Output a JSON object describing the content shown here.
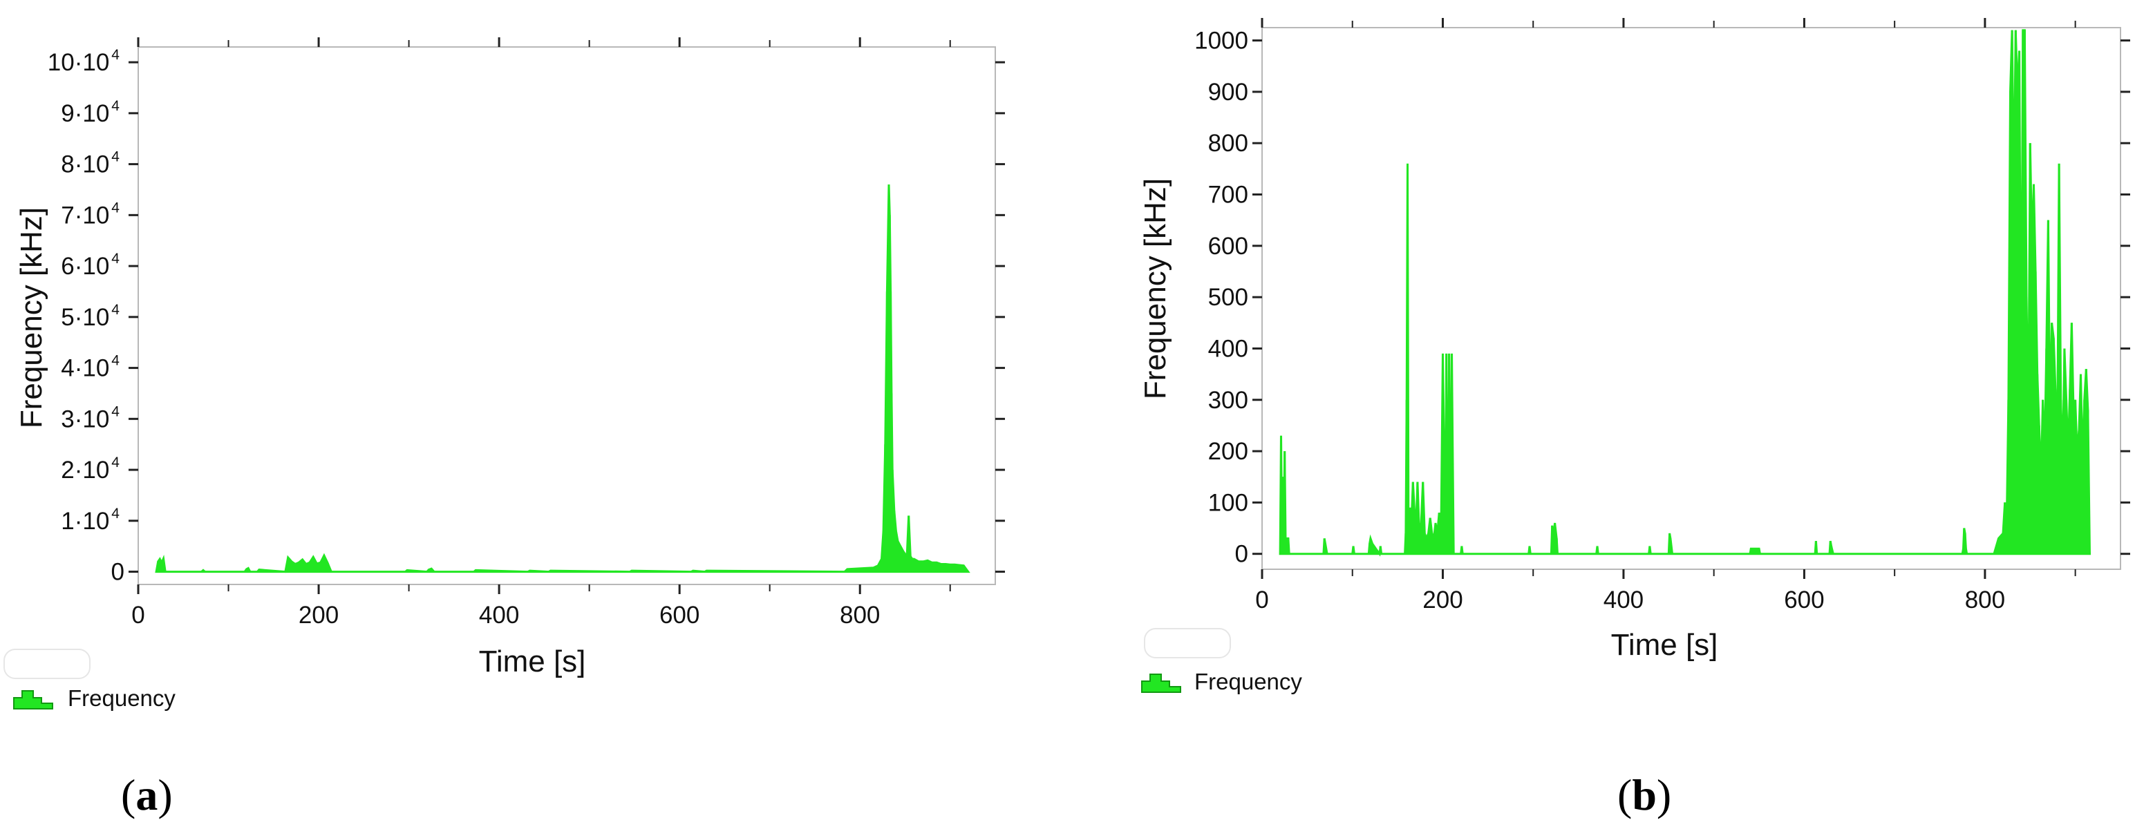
{
  "chart_data": [
    {
      "type": "area",
      "panel_label": "(a)",
      "panel_letter": "a",
      "xlabel": "Time [s]",
      "ylabel": "Frequency [kHz]",
      "xlim": [
        0,
        950
      ],
      "ylim": [
        -2500,
        103000
      ],
      "x_ticks": [
        0,
        200,
        400,
        600,
        800
      ],
      "x_tick_labels": [
        "0",
        "200",
        "400",
        "600",
        "800"
      ],
      "y_ticks": [
        0,
        10000,
        20000,
        30000,
        40000,
        50000,
        60000,
        70000,
        80000,
        90000,
        100000
      ],
      "y_tick_labels": [
        {
          "base": "0",
          "exp": ""
        },
        {
          "base": "1·10",
          "exp": "4"
        },
        {
          "base": "2·10",
          "exp": "4"
        },
        {
          "base": "3·10",
          "exp": "4"
        },
        {
          "base": "4·10",
          "exp": "4"
        },
        {
          "base": "5·10",
          "exp": "4"
        },
        {
          "base": "6·10",
          "exp": "4"
        },
        {
          "base": "7·10",
          "exp": "4"
        },
        {
          "base": "8·10",
          "exp": "4"
        },
        {
          "base": "9·10",
          "exp": "4"
        },
        {
          "base": "10·10",
          "exp": "4"
        }
      ],
      "legend": "Frequency",
      "legend_position": "bottom-left",
      "color": "#22e622",
      "series": [
        {
          "name": "Frequency",
          "x": [
            20,
            22,
            24,
            26,
            28,
            30,
            70,
            72,
            74,
            118,
            120,
            122,
            124,
            132,
            134,
            163,
            166,
            170,
            174,
            178,
            182,
            186,
            190,
            194,
            198,
            202,
            206,
            210,
            214,
            296,
            298,
            320,
            322,
            325,
            328,
            372,
            374,
            432,
            434,
            455,
            457,
            545,
            547,
            613,
            615,
            628,
            630,
            783,
            786,
            815,
            820,
            824,
            826,
            828,
            830,
            832,
            833,
            834,
            835,
            836,
            838,
            840,
            842,
            845,
            848,
            850,
            852,
            854,
            856,
            858,
            860,
            865,
            870,
            875,
            880,
            885,
            890,
            895,
            900,
            905,
            910,
            915,
            920
          ],
          "y": [
            0,
            2000,
            2500,
            1800,
            2600,
            0,
            0,
            300,
            0,
            0,
            500,
            700,
            0,
            0,
            400,
            0,
            2800,
            2000,
            1500,
            1800,
            2400,
            1500,
            1800,
            2900,
            1600,
            1800,
            3200,
            1700,
            0,
            0,
            300,
            0,
            400,
            600,
            0,
            0,
            300,
            0,
            200,
            0,
            200,
            0,
            200,
            0,
            200,
            0,
            200,
            0,
            500,
            800,
            1200,
            2500,
            8000,
            25000,
            55000,
            76000,
            70000,
            55000,
            35000,
            20000,
            12000,
            8000,
            6000,
            5000,
            4000,
            3500,
            3000,
            11000,
            3000,
            2500,
            2500,
            2000,
            2000,
            2200,
            1800,
            1800,
            1500,
            1500,
            1400,
            1400,
            1300,
            1200,
            0
          ]
        }
      ]
    },
    {
      "type": "area",
      "panel_label": "(b)",
      "panel_letter": "b",
      "xlabel": "Time [s]",
      "ylabel": "Frequency [kHz]",
      "xlim": [
        0,
        950
      ],
      "ylim": [
        -30,
        1025
      ],
      "x_ticks": [
        0,
        200,
        400,
        600,
        800
      ],
      "x_tick_labels": [
        "0",
        "200",
        "400",
        "600",
        "800"
      ],
      "y_ticks": [
        0,
        100,
        200,
        300,
        400,
        500,
        600,
        700,
        800,
        900,
        1000
      ],
      "y_tick_labels": [
        "0",
        "100",
        "200",
        "300",
        "400",
        "500",
        "600",
        "700",
        "800",
        "900",
        "1000"
      ],
      "legend": "Frequency",
      "legend_position": "bottom-left",
      "color": "#22e622",
      "series": [
        {
          "name": "Frequency",
          "x": [
            20,
            21,
            22,
            23,
            24,
            25,
            26,
            27,
            28,
            29,
            30,
            31,
            68,
            69,
            70,
            72,
            100,
            101,
            102,
            118,
            119,
            120,
            122,
            124,
            126,
            130,
            131,
            132,
            158,
            159,
            160,
            161,
            162,
            163,
            164,
            165,
            167,
            170,
            172,
            174,
            176,
            178,
            180,
            182,
            184,
            186,
            188,
            190,
            192,
            194,
            196,
            198,
            200,
            202,
            203,
            204,
            205,
            206,
            207,
            208,
            210,
            212,
            213,
            214,
            215,
            216,
            220,
            221,
            222,
            295,
            296,
            297,
            320,
            321,
            322,
            324,
            326,
            327,
            370,
            371,
            372,
            428,
            429,
            430,
            450,
            451,
            452,
            454,
            540,
            541,
            550,
            551,
            612,
            613,
            614,
            628,
            629,
            630,
            632,
            775,
            776,
            777,
            778,
            779,
            780,
            810,
            815,
            820,
            822,
            824,
            826,
            828,
            830,
            832,
            834,
            836,
            838,
            840,
            842,
            844,
            846,
            848,
            850,
            852,
            854,
            856,
            858,
            860,
            862,
            864,
            866,
            868,
            870,
            872,
            874,
            876,
            878,
            880,
            882,
            884,
            886,
            888,
            890,
            892,
            894,
            896,
            898,
            900,
            902,
            904,
            906,
            908,
            910,
            912,
            914,
            916
          ],
          "y": [
            0,
            230,
            30,
            150,
            30,
            200,
            30,
            30,
            30,
            30,
            0,
            0,
            0,
            30,
            20,
            0,
            0,
            15,
            0,
            0,
            20,
            30,
            20,
            15,
            10,
            0,
            15,
            0,
            0,
            40,
            300,
            760,
            80,
            40,
            90,
            50,
            140,
            40,
            140,
            40,
            60,
            140,
            40,
            30,
            40,
            70,
            40,
            30,
            60,
            40,
            80,
            40,
            390,
            150,
            40,
            390,
            90,
            150,
            390,
            40,
            390,
            0,
            0,
            0,
            0,
            0,
            0,
            15,
            0,
            0,
            15,
            0,
            0,
            55,
            30,
            60,
            30,
            0,
            0,
            15,
            0,
            0,
            15,
            0,
            0,
            40,
            30,
            0,
            0,
            10,
            10,
            0,
            0,
            25,
            0,
            0,
            25,
            15,
            0,
            0,
            10,
            50,
            40,
            10,
            0,
            0,
            30,
            40,
            100,
            60,
            300,
            900,
            1020,
            700,
            1020,
            900,
            980,
            300,
            1020,
            1020,
            500,
            250,
            800,
            600,
            720,
            550,
            350,
            250,
            150,
            300,
            200,
            400,
            650,
            260,
            450,
            420,
            320,
            200,
            760,
            300,
            180,
            400,
            300,
            200,
            320,
            450,
            280,
            300,
            200,
            240,
            350,
            180,
            300,
            360,
            280,
            0
          ]
        }
      ]
    }
  ]
}
